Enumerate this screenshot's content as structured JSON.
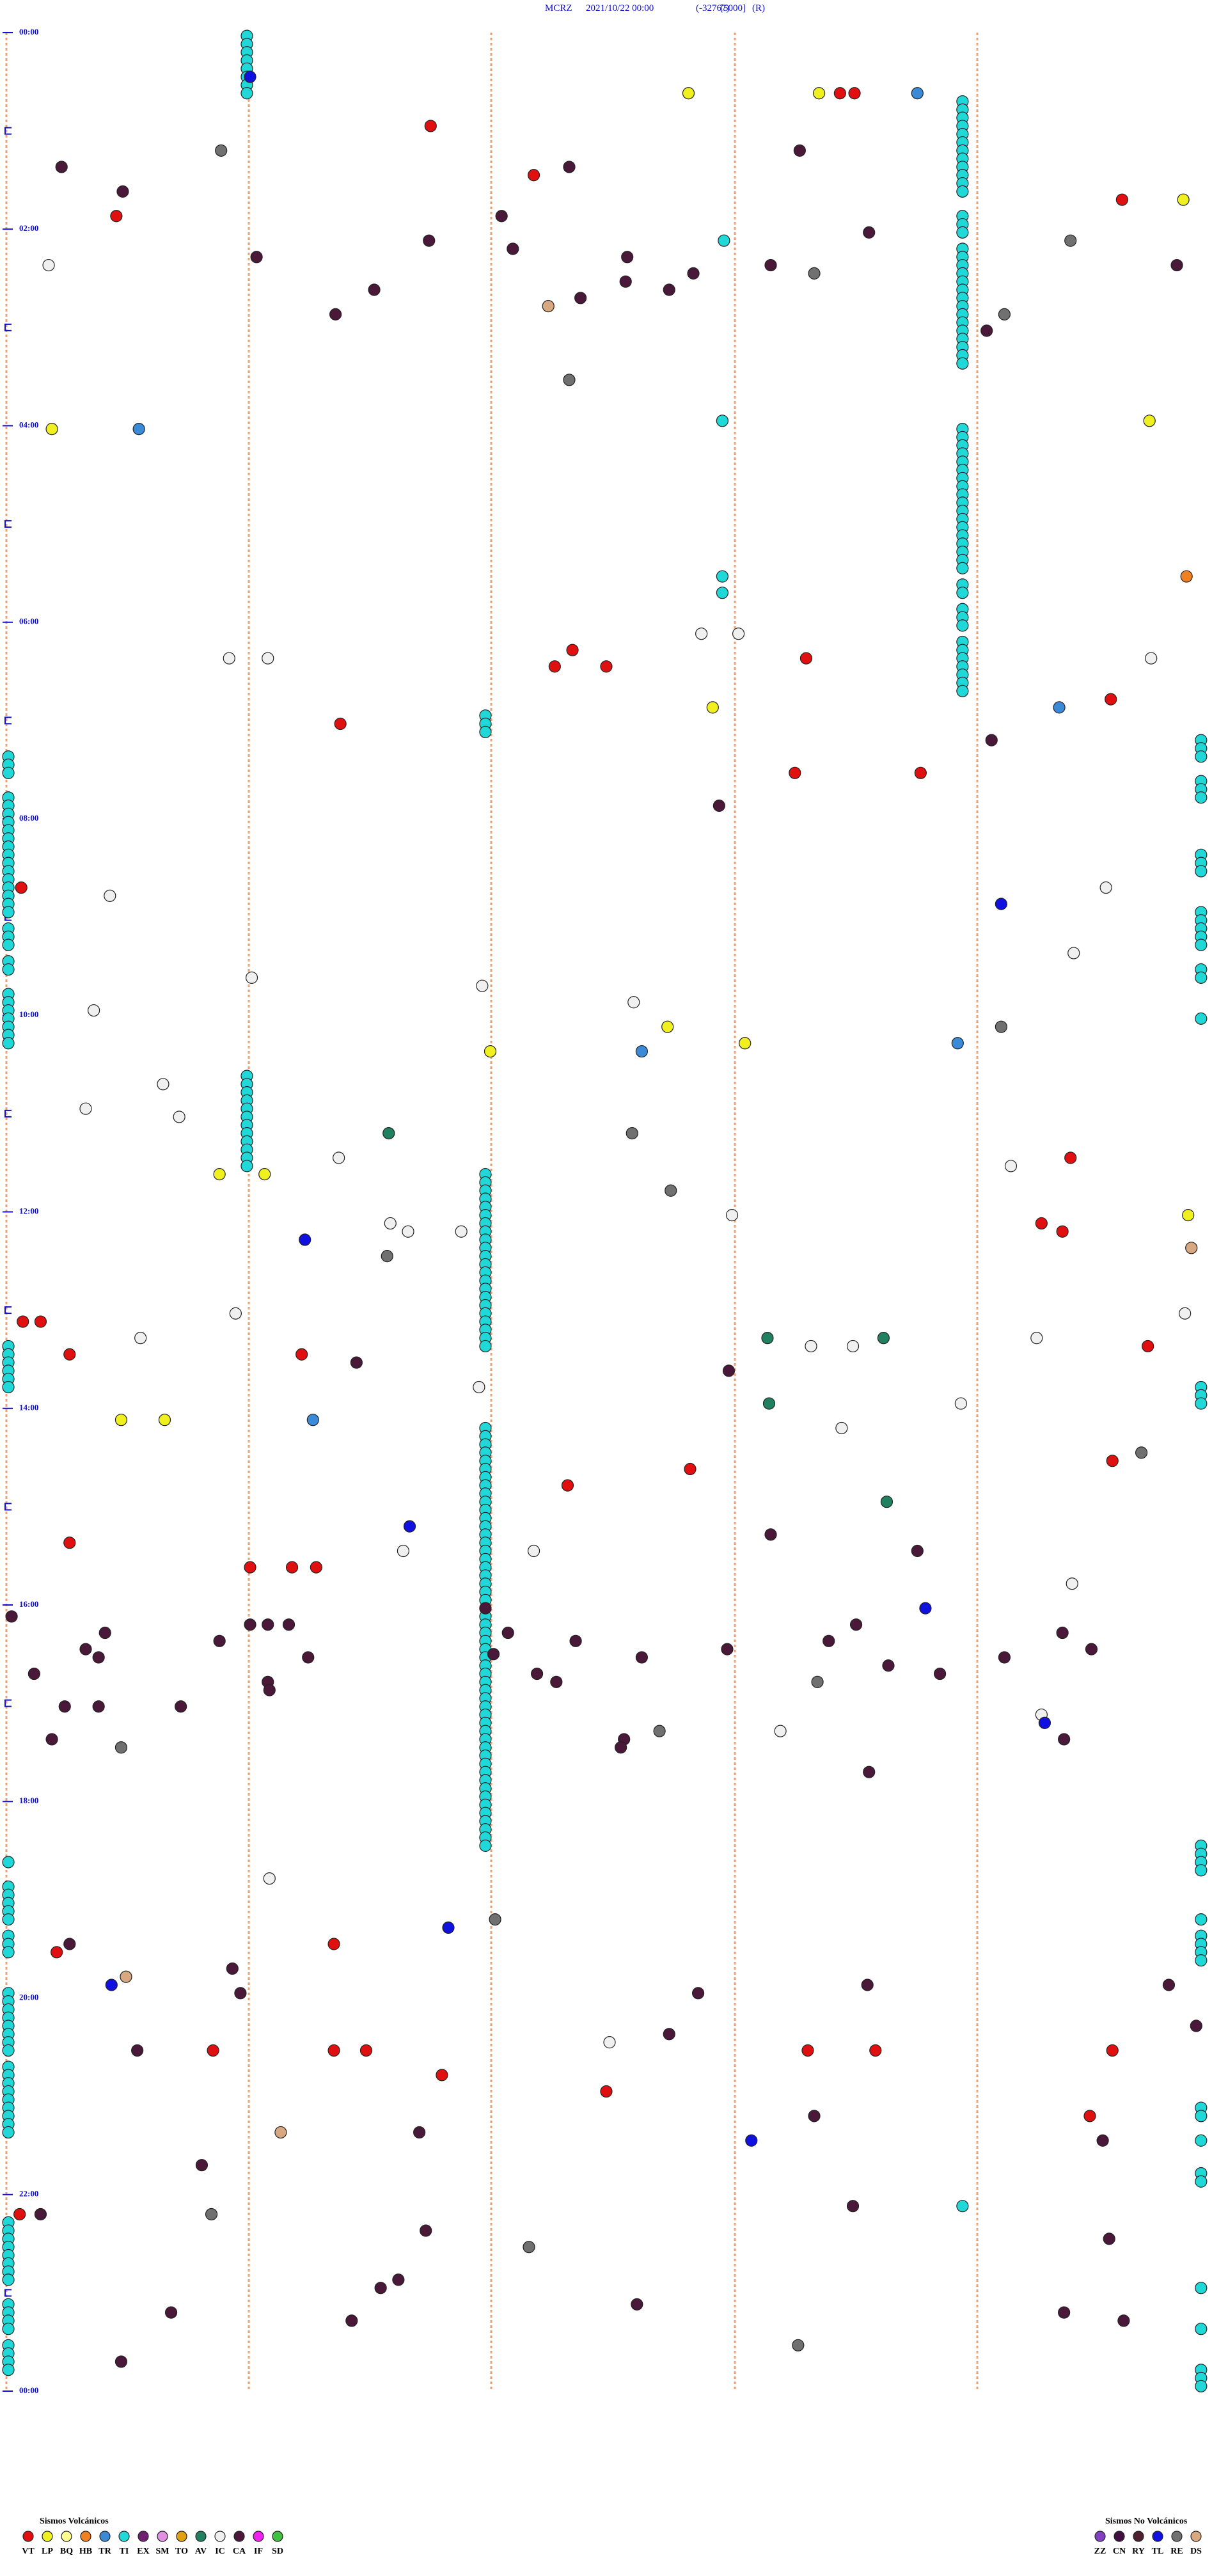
{
  "chart_data": {
    "type": "event-plot",
    "title": {
      "station": "MCRZ",
      "date": "2021/10/22 00:00",
      "min": "(-32767)",
      "scale": "[5000]",
      "mode": "(R)"
    },
    "xlim": [
      0,
      750
    ],
    "ylim": [
      0,
      1440
    ],
    "yticks": [
      {
        "value": 0,
        "label": "00:00"
      },
      {
        "value": 120,
        "label": "02:00"
      },
      {
        "value": 240,
        "label": "04:00"
      },
      {
        "value": 360,
        "label": "06:00"
      },
      {
        "value": 480,
        "label": "08:00"
      },
      {
        "value": 600,
        "label": "10:00"
      },
      {
        "value": 720,
        "label": "12:00"
      },
      {
        "value": 840,
        "label": "14:00"
      },
      {
        "value": 960,
        "label": "16:00"
      },
      {
        "value": 1080,
        "label": "18:00"
      },
      {
        "value": 1200,
        "label": "20:00"
      },
      {
        "value": 1320,
        "label": "22:00"
      },
      {
        "value": 1440,
        "label": "00:00"
      }
    ],
    "legend": {
      "volcanic": {
        "title": "Sismos Volcánicos",
        "items": [
          {
            "code": "VT",
            "color": "#e01010"
          },
          {
            "code": "LP",
            "color": "#f0f020"
          },
          {
            "code": "BQ",
            "color": "#ffff90"
          },
          {
            "code": "HB",
            "color": "#f08020"
          },
          {
            "code": "TR",
            "color": "#3a8ad8"
          },
          {
            "code": "TI",
            "color": "#20d8d8"
          },
          {
            "code": "EX",
            "color": "#702070"
          },
          {
            "code": "SM",
            "color": "#e090e0"
          },
          {
            "code": "TO",
            "color": "#e0a010"
          },
          {
            "code": "AV",
            "color": "#208060"
          },
          {
            "code": "IC",
            "color": "#f0f0f0"
          },
          {
            "code": "CA",
            "color": "#4a1838"
          },
          {
            "code": "IF",
            "color": "#f020f0"
          },
          {
            "code": "SD",
            "color": "#40c040"
          }
        ]
      },
      "non_volcanic": {
        "title": "Sismos No Volcánicos",
        "items": [
          {
            "code": "ZZ",
            "color": "#8040c0"
          },
          {
            "code": "CN",
            "color": "#401040"
          },
          {
            "code": "RY",
            "color": "#502030"
          },
          {
            "code": "TL",
            "color": "#1010e0"
          },
          {
            "code": "RE",
            "color": "#707070"
          },
          {
            "code": "DS",
            "color": "#d8a880"
          }
        ]
      }
    },
    "run_type": "TI",
    "run_step": 5,
    "runs": [
      [
        150,
        2,
        37
      ],
      [
        594,
        42,
        97
      ],
      [
        594,
        112,
        122
      ],
      [
        594,
        132,
        202
      ],
      [
        594,
        242,
        327
      ],
      [
        594,
        337,
        342
      ],
      [
        594,
        352,
        362
      ],
      [
        594,
        372,
        402
      ],
      [
        298,
        417,
        427
      ],
      [
        742,
        432,
        442
      ],
      [
        742,
        457,
        467
      ],
      [
        2,
        442,
        452
      ],
      [
        2,
        467,
        477
      ],
      [
        2,
        482,
        507
      ],
      [
        2,
        512,
        537
      ],
      [
        2,
        547,
        557
      ],
      [
        2,
        567,
        572
      ],
      [
        742,
        502,
        512
      ],
      [
        742,
        537,
        557
      ],
      [
        742,
        572,
        577
      ],
      [
        742,
        602,
        602
      ],
      [
        2,
        587,
        617
      ],
      [
        150,
        637,
        692
      ],
      [
        298,
        697,
        802
      ],
      [
        2,
        802,
        827
      ],
      [
        742,
        827,
        837
      ],
      [
        298,
        852,
        1107
      ],
      [
        742,
        1107,
        1122
      ],
      [
        742,
        1152,
        1152
      ],
      [
        742,
        1162,
        1177
      ],
      [
        2,
        1117,
        1117
      ],
      [
        2,
        1132,
        1152
      ],
      [
        2,
        1162,
        1172
      ],
      [
        2,
        1197,
        1232
      ],
      [
        2,
        1242,
        1282
      ],
      [
        742,
        1267,
        1272
      ],
      [
        742,
        1287,
        1287
      ],
      [
        742,
        1307,
        1312
      ],
      [
        594,
        1327,
        1327
      ],
      [
        2,
        1337,
        1372
      ],
      [
        2,
        1387,
        1402
      ],
      [
        2,
        1412,
        1427
      ],
      [
        742,
        1377,
        1377
      ],
      [
        742,
        1402,
        1402
      ],
      [
        742,
        1427,
        1437
      ]
    ],
    "events": [
      [
        424,
        37,
        "LP"
      ],
      [
        505,
        37,
        "LP"
      ],
      [
        518,
        37,
        "VT"
      ],
      [
        527,
        37,
        "VT"
      ],
      [
        566,
        37,
        "TR"
      ],
      [
        152,
        27,
        "TL"
      ],
      [
        264,
        57,
        "VT"
      ],
      [
        35,
        82,
        "CA"
      ],
      [
        134,
        72,
        "RE"
      ],
      [
        73,
        97,
        "CA"
      ],
      [
        328,
        87,
        "VT"
      ],
      [
        350,
        82,
        "CA"
      ],
      [
        493,
        72,
        "CA"
      ],
      [
        693,
        102,
        "VT"
      ],
      [
        731,
        102,
        "LP"
      ],
      [
        69,
        112,
        "VT"
      ],
      [
        308,
        112,
        "CA"
      ],
      [
        263,
        127,
        "CA"
      ],
      [
        315,
        132,
        "CA"
      ],
      [
        156,
        137,
        "CA"
      ],
      [
        27,
        142,
        "IC"
      ],
      [
        229,
        157,
        "CA"
      ],
      [
        205,
        172,
        "CA"
      ],
      [
        386,
        137,
        "CA"
      ],
      [
        385,
        152,
        "CA"
      ],
      [
        412,
        157,
        "CA"
      ],
      [
        427,
        147,
        "CA"
      ],
      [
        357,
        162,
        "CA"
      ],
      [
        337,
        167,
        "DS"
      ],
      [
        446,
        127,
        "TI"
      ],
      [
        475,
        142,
        "CA"
      ],
      [
        502,
        147,
        "RE"
      ],
      [
        536,
        122,
        "CA"
      ],
      [
        661,
        127,
        "RE"
      ],
      [
        727,
        142,
        "CA"
      ],
      [
        620,
        172,
        "RE"
      ],
      [
        609,
        182,
        "CA"
      ],
      [
        350,
        212,
        "RE"
      ],
      [
        29,
        242,
        "LP"
      ],
      [
        83,
        242,
        "TR"
      ],
      [
        445,
        237,
        "TI"
      ],
      [
        710,
        237,
        "LP"
      ],
      [
        733,
        332,
        "HB"
      ],
      [
        445,
        332,
        "TI"
      ],
      [
        445,
        342,
        "TI"
      ],
      [
        432,
        367,
        "IC"
      ],
      [
        455,
        367,
        "IC"
      ],
      [
        139,
        382,
        "IC"
      ],
      [
        163,
        382,
        "IC"
      ],
      [
        352,
        377,
        "VT"
      ],
      [
        341,
        387,
        "VT"
      ],
      [
        373,
        387,
        "VT"
      ],
      [
        497,
        382,
        "VT"
      ],
      [
        711,
        382,
        "IC"
      ],
      [
        208,
        422,
        "VT"
      ],
      [
        439,
        412,
        "LP"
      ],
      [
        654,
        412,
        "TR"
      ],
      [
        686,
        407,
        "VT"
      ],
      [
        612,
        432,
        "CA"
      ],
      [
        490,
        452,
        "VT"
      ],
      [
        568,
        452,
        "VT"
      ],
      [
        443,
        472,
        "CA"
      ],
      [
        10,
        522,
        "VT"
      ],
      [
        65,
        527,
        "IC"
      ],
      [
        618,
        532,
        "TL"
      ],
      [
        683,
        522,
        "IC"
      ],
      [
        663,
        562,
        "IC"
      ],
      [
        153,
        577,
        "IC"
      ],
      [
        296,
        582,
        "IC"
      ],
      [
        55,
        597,
        "IC"
      ],
      [
        390,
        592,
        "IC"
      ],
      [
        411,
        607,
        "LP"
      ],
      [
        395,
        622,
        "TR"
      ],
      [
        301,
        622,
        "LP"
      ],
      [
        459,
        617,
        "LP"
      ],
      [
        591,
        617,
        "TR"
      ],
      [
        618,
        607,
        "RE"
      ],
      [
        98,
        642,
        "IC"
      ],
      [
        50,
        657,
        "IC"
      ],
      [
        108,
        662,
        "IC"
      ],
      [
        238,
        672,
        "AV"
      ],
      [
        389,
        672,
        "RE"
      ],
      [
        133,
        697,
        "LP"
      ],
      [
        161,
        697,
        "LP"
      ],
      [
        207,
        687,
        "IC"
      ],
      [
        413,
        707,
        "RE"
      ],
      [
        624,
        692,
        "IC"
      ],
      [
        661,
        687,
        "VT"
      ],
      [
        239,
        727,
        "IC"
      ],
      [
        250,
        732,
        "IC"
      ],
      [
        283,
        732,
        "IC"
      ],
      [
        186,
        737,
        "TL"
      ],
      [
        237,
        747,
        "RE"
      ],
      [
        451,
        722,
        "IC"
      ],
      [
        643,
        727,
        "VT"
      ],
      [
        656,
        732,
        "VT"
      ],
      [
        734,
        722,
        "LP"
      ],
      [
        736,
        742,
        "DS"
      ],
      [
        143,
        782,
        "IC"
      ],
      [
        11,
        787,
        "VT"
      ],
      [
        22,
        787,
        "VT"
      ],
      [
        40,
        807,
        "VT"
      ],
      [
        84,
        797,
        "IC"
      ],
      [
        184,
        807,
        "VT"
      ],
      [
        218,
        812,
        "CA"
      ],
      [
        473,
        797,
        "AV"
      ],
      [
        500,
        802,
        "IC"
      ],
      [
        526,
        802,
        "IC"
      ],
      [
        545,
        797,
        "AV"
      ],
      [
        640,
        797,
        "IC"
      ],
      [
        709,
        802,
        "VT"
      ],
      [
        732,
        782,
        "IC"
      ],
      [
        449,
        817,
        "CA"
      ],
      [
        294,
        827,
        "IC"
      ],
      [
        474,
        837,
        "AV"
      ],
      [
        593,
        837,
        "IC"
      ],
      [
        72,
        847,
        "LP"
      ],
      [
        99,
        847,
        "LP"
      ],
      [
        191,
        847,
        "TR"
      ],
      [
        519,
        852,
        "IC"
      ],
      [
        687,
        872,
        "VT"
      ],
      [
        705,
        867,
        "RE"
      ],
      [
        425,
        877,
        "VT"
      ],
      [
        349,
        887,
        "VT"
      ],
      [
        547,
        897,
        "AV"
      ],
      [
        251,
        912,
        "TL"
      ],
      [
        40,
        922,
        "VT"
      ],
      [
        475,
        917,
        "CA"
      ],
      [
        247,
        927,
        "IC"
      ],
      [
        328,
        927,
        "IC"
      ],
      [
        566,
        927,
        "CA"
      ],
      [
        152,
        937,
        "VT"
      ],
      [
        178,
        937,
        "VT"
      ],
      [
        193,
        937,
        "VT"
      ],
      [
        662,
        947,
        "IC"
      ],
      [
        571,
        962,
        "TL"
      ],
      [
        298,
        962,
        "CA"
      ],
      [
        4,
        967,
        "CA"
      ],
      [
        152,
        972,
        "CA"
      ],
      [
        163,
        972,
        "CA"
      ],
      [
        176,
        972,
        "CA"
      ],
      [
        62,
        977,
        "CA"
      ],
      [
        133,
        982,
        "CA"
      ],
      [
        50,
        987,
        "CA"
      ],
      [
        58,
        992,
        "CA"
      ],
      [
        188,
        992,
        "CA"
      ],
      [
        312,
        977,
        "CA"
      ],
      [
        354,
        982,
        "CA"
      ],
      [
        303,
        990,
        "CA"
      ],
      [
        448,
        987,
        "CA"
      ],
      [
        511,
        982,
        "CA"
      ],
      [
        528,
        972,
        "CA"
      ],
      [
        656,
        977,
        "CA"
      ],
      [
        674,
        987,
        "CA"
      ],
      [
        620,
        992,
        "CA"
      ],
      [
        18,
        1002,
        "CA"
      ],
      [
        163,
        1007,
        "CA"
      ],
      [
        164,
        1012,
        "CA"
      ],
      [
        330,
        1002,
        "CA"
      ],
      [
        342,
        1007,
        "CA"
      ],
      [
        395,
        992,
        "CA"
      ],
      [
        504,
        1007,
        "RE"
      ],
      [
        548,
        997,
        "CA"
      ],
      [
        580,
        1002,
        "CA"
      ],
      [
        37,
        1022,
        "CA"
      ],
      [
        58,
        1022,
        "CA"
      ],
      [
        109,
        1022,
        "CA"
      ],
      [
        643,
        1027,
        "IC"
      ],
      [
        645,
        1032,
        "TL"
      ],
      [
        657,
        1042,
        "CA"
      ],
      [
        29,
        1042,
        "CA"
      ],
      [
        72,
        1047,
        "RE"
      ],
      [
        384,
        1042,
        "CA"
      ],
      [
        382,
        1047,
        "CA"
      ],
      [
        406,
        1037,
        "RE"
      ],
      [
        481,
        1037,
        "IC"
      ],
      [
        536,
        1062,
        "CA"
      ],
      [
        164,
        1127,
        "IC"
      ],
      [
        304,
        1152,
        "RE"
      ],
      [
        275,
        1157,
        "TL"
      ],
      [
        40,
        1167,
        "CA"
      ],
      [
        32,
        1172,
        "VT"
      ],
      [
        204,
        1167,
        "VT"
      ],
      [
        141,
        1182,
        "CA"
      ],
      [
        146,
        1197,
        "CA"
      ],
      [
        75,
        1187,
        "DS"
      ],
      [
        66,
        1192,
        "TL"
      ],
      [
        430,
        1197,
        "CA"
      ],
      [
        535,
        1192,
        "CA"
      ],
      [
        722,
        1192,
        "CA"
      ],
      [
        739,
        1217,
        "CA"
      ],
      [
        82,
        1232,
        "CA"
      ],
      [
        129,
        1232,
        "VT"
      ],
      [
        204,
        1232,
        "VT"
      ],
      [
        224,
        1232,
        "VT"
      ],
      [
        375,
        1227,
        "IC"
      ],
      [
        412,
        1222,
        "CA"
      ],
      [
        498,
        1232,
        "VT"
      ],
      [
        540,
        1232,
        "VT"
      ],
      [
        687,
        1232,
        "VT"
      ],
      [
        271,
        1247,
        "VT"
      ],
      [
        373,
        1257,
        "VT"
      ],
      [
        502,
        1272,
        "CA"
      ],
      [
        673,
        1272,
        "VT"
      ],
      [
        171,
        1282,
        "DS"
      ],
      [
        257,
        1282,
        "CA"
      ],
      [
        463,
        1287,
        "TL"
      ],
      [
        681,
        1287,
        "CA"
      ],
      [
        122,
        1302,
        "CA"
      ],
      [
        9,
        1332,
        "VT"
      ],
      [
        22,
        1332,
        "CA"
      ],
      [
        128,
        1332,
        "RE"
      ],
      [
        526,
        1327,
        "CA"
      ],
      [
        261,
        1342,
        "CA"
      ],
      [
        685,
        1347,
        "CA"
      ],
      [
        325,
        1352,
        "RE"
      ],
      [
        244,
        1372,
        "CA"
      ],
      [
        233,
        1377,
        "CA"
      ],
      [
        103,
        1392,
        "CA"
      ],
      [
        215,
        1397,
        "CA"
      ],
      [
        392,
        1387,
        "CA"
      ],
      [
        657,
        1392,
        "CA"
      ],
      [
        694,
        1397,
        "CA"
      ],
      [
        72,
        1422,
        "CA"
      ],
      [
        492,
        1412,
        "RE"
      ]
    ]
  }
}
